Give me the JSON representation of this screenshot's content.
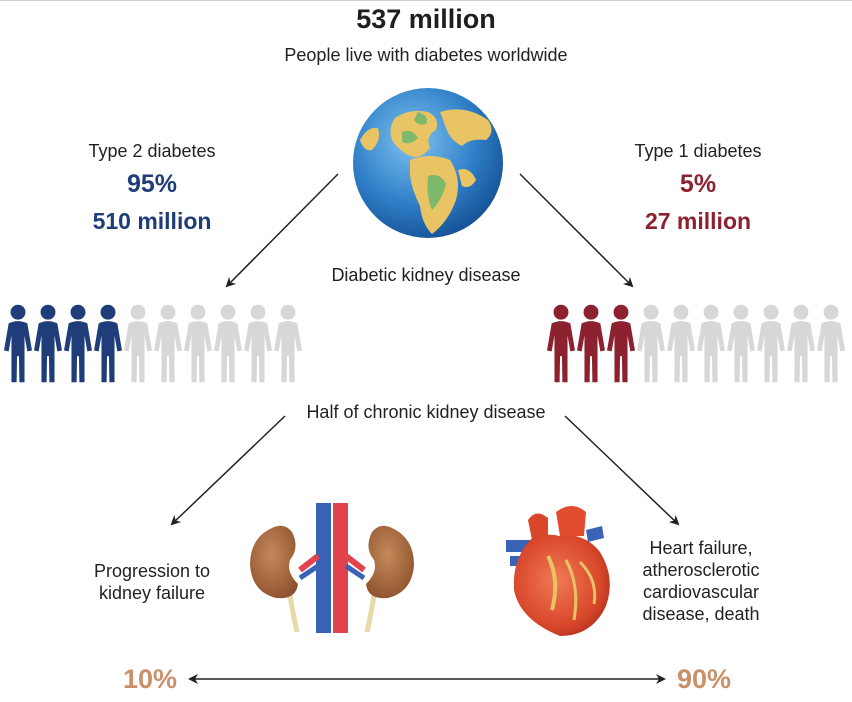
{
  "header": {
    "total": "537 million",
    "subtitle": "People live with diabetes worldwide"
  },
  "type2": {
    "label": "Type 2 diabetes",
    "percent": "95%",
    "count": "510 million",
    "affected_of_10": 4,
    "color": "#1f3d78"
  },
  "type1": {
    "label": "Type 1 diabetes",
    "percent": "5%",
    "count": "27 million",
    "affected_of_10": 3,
    "color": "#8c2230"
  },
  "middle": {
    "dkd": "Diabetic kidney disease",
    "ckd": "Half of chronic kidney disease"
  },
  "outcomes": {
    "kidney": {
      "line1": "Progression to",
      "line2": "kidney failure",
      "percent": "10%"
    },
    "heart": {
      "line1": "Heart failure,",
      "line2": "atherosclerotic",
      "line3": "cardiovascular",
      "line4": "disease, death",
      "percent": "90%"
    }
  },
  "colors": {
    "inactive_person": "#d7d7d7",
    "outcome_percent": "#c9906a"
  },
  "icons": [
    "globe-icon",
    "person-icon",
    "kidney-icon",
    "heart-icon",
    "arrow-icon"
  ]
}
